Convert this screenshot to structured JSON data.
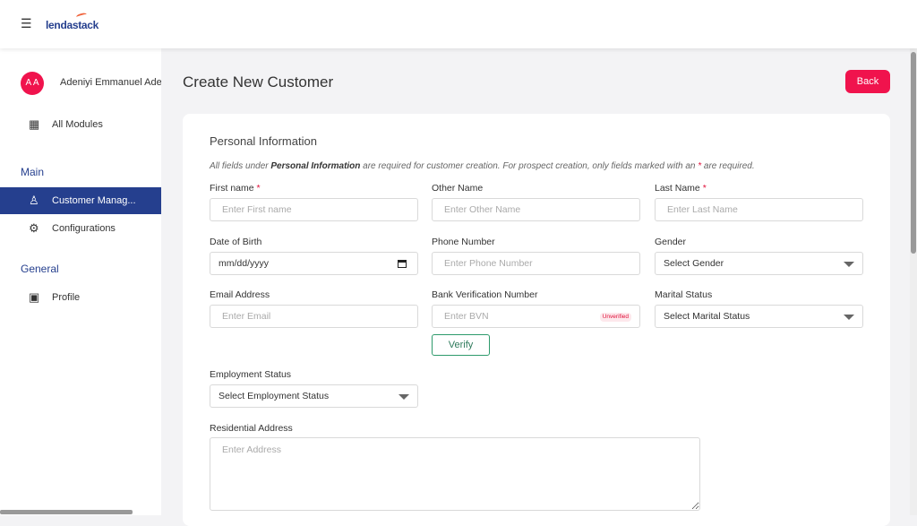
{
  "header": {
    "logo": "lendastack"
  },
  "sidebar": {
    "avatar_initials": "A A",
    "user_name": "Adeniyi Emmanuel Adeniyi",
    "all_modules": "All Modules",
    "main_section": "Main",
    "general_section": "General",
    "items": [
      {
        "label": "Customer Manag..."
      },
      {
        "label": "Configurations"
      },
      {
        "label": "Profile"
      }
    ]
  },
  "page": {
    "title": "Create New Customer",
    "back": "Back"
  },
  "form": {
    "section_title": "Personal Information",
    "note_pre": "All fields under ",
    "note_bold": "Personal Information",
    "note_mid": " are required for customer creation. For prospect creation, only fields marked with an ",
    "note_star": "*",
    "note_post": " are required.",
    "first_name": {
      "label": "First name",
      "placeholder": "Enter First name"
    },
    "other_name": {
      "label": "Other Name",
      "placeholder": "Enter Other Name"
    },
    "last_name": {
      "label": "Last Name",
      "placeholder": "Enter Last Name"
    },
    "dob": {
      "label": "Date of Birth",
      "value": "mm/dd/yyyy"
    },
    "phone": {
      "label": "Phone Number",
      "placeholder": "Enter Phone Number"
    },
    "gender": {
      "label": "Gender",
      "value": "Select Gender"
    },
    "email": {
      "label": "Email Address",
      "placeholder": "Enter Email"
    },
    "bvn": {
      "label": "Bank Verification Number",
      "placeholder": "Enter BVN",
      "status": "Unverified",
      "verify": "Verify"
    },
    "marital": {
      "label": "Marital Status",
      "value": "Select Marital Status"
    },
    "employment": {
      "label": "Employment Status",
      "value": "Select Employment Status"
    },
    "address": {
      "label": "Residential Address",
      "placeholder": "Enter Address"
    },
    "required_mark": "*"
  }
}
